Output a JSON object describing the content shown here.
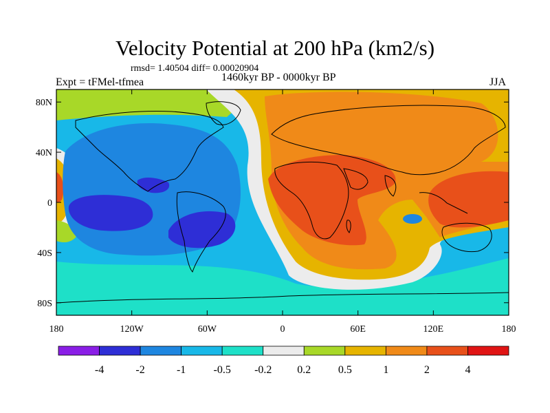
{
  "chart_data": {
    "type": "heatmap",
    "title": "Velocity Potential at 200 hPa (km2/s)",
    "stats_text": "rmsd= 1.40504 diff= 0.00020904",
    "left_label": "Expt = tFMel-tfmea",
    "center_label": "1460kyr BP - 0000kyr BP",
    "right_label": "JJA",
    "x_ticks": [
      "180",
      "120W",
      "60W",
      "0",
      "60E",
      "120E",
      "180"
    ],
    "y_ticks": [
      "80N",
      "40N",
      "0",
      "40S",
      "80S"
    ],
    "xlim": [
      -180,
      180
    ],
    "ylim": [
      -90,
      90
    ],
    "colorbar": {
      "levels": [
        "-4",
        "-2",
        "-1",
        "-0.5",
        "-0.2",
        "0.2",
        "0.5",
        "1",
        "2",
        "4"
      ],
      "colors": [
        "#8a1ee6",
        "#2e2ed6",
        "#1e86e0",
        "#18b8e8",
        "#1ee0c8",
        "#ececec",
        "#a8d828",
        "#e6b400",
        "#f08a18",
        "#e8501a",
        "#e01414"
      ]
    },
    "regions": [
      {
        "name": "Asia-Africa positive center",
        "lon": 45,
        "lat": 20,
        "value": "2 to 4"
      },
      {
        "name": "Western Pacific positive center",
        "lon": 140,
        "lat": 5,
        "value": "2 to 4"
      },
      {
        "name": "Pacific negative center",
        "lon": -130,
        "lat": -5,
        "value": "-4 to -2"
      },
      {
        "name": "South America negative center",
        "lon": -65,
        "lat": -10,
        "value": "-4 to -2"
      },
      {
        "name": "Southern Ocean",
        "lon": 0,
        "lat": -70,
        "value": "-0.5 to -0.2"
      }
    ]
  }
}
